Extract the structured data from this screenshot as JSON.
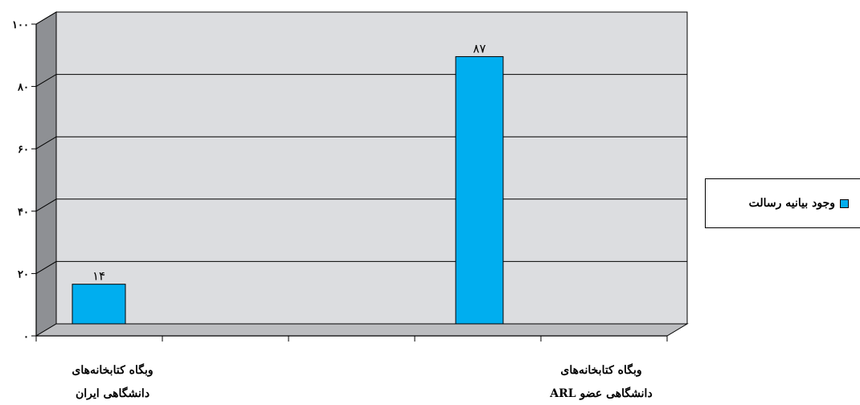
{
  "chart_data": {
    "type": "bar",
    "categories": [
      {
        "line1": "وبگاه کتابخانه‌های",
        "line2": "دانشگاهی ایران"
      },
      {
        "line1": "وبگاه کتابخانه‌های",
        "line2": "دانشگاهی عضو ARL"
      }
    ],
    "series": [
      {
        "name": "وجود بیانیه رسالت",
        "values": [
          14,
          87
        ],
        "value_labels": [
          "۱۴",
          "۸۷"
        ],
        "color": "#00aeef"
      }
    ],
    "y_ticks": [
      {
        "value": 0,
        "label": "۰"
      },
      {
        "value": 20,
        "label": "۲۰"
      },
      {
        "value": 40,
        "label": "۴۰"
      },
      {
        "value": 60,
        "label": "۶۰"
      },
      {
        "value": 80,
        "label": "۸۰"
      },
      {
        "value": 100,
        "label": "۱۰۰"
      }
    ],
    "ylim": [
      0,
      100
    ],
    "grid": true,
    "style": "3d",
    "legend_position": "right"
  }
}
